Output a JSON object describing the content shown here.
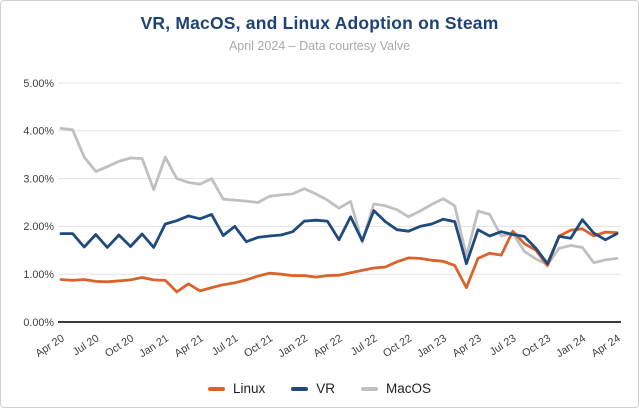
{
  "card": {
    "title": "VR, MacOS, and Linux Adoption on Steam",
    "subtitle": "April 2024 – Data courtesy Valve"
  },
  "chart_data": {
    "type": "line",
    "title": "VR, MacOS, and Linux Adoption on Steam",
    "subtitle": "April 2024 – Data courtesy Valve",
    "grid": true,
    "legend_position": "bottom",
    "ylim": [
      0,
      5
    ],
    "y_tick_labels": [
      "0.00%",
      "1.00%",
      "2.00%",
      "3.00%",
      "4.00%",
      "5.00%"
    ],
    "x_tick_labels": [
      "Apr 20",
      "Jul 20",
      "Oct 20",
      "Jan 21",
      "Apr 21",
      "Jul 21",
      "Oct 21",
      "Jan 22",
      "Apr 22",
      "Jul 22",
      "Oct 22",
      "Jan 23",
      "Apr 23",
      "Jul 23",
      "Oct 23",
      "Jan 24",
      "Apr 24"
    ],
    "x_months": [
      "Apr 20",
      "May 20",
      "Jun 20",
      "Jul 20",
      "Aug 20",
      "Sep 20",
      "Oct 20",
      "Nov 20",
      "Dec 20",
      "Jan 21",
      "Feb 21",
      "Mar 21",
      "Apr 21",
      "May 21",
      "Jun 21",
      "Jul 21",
      "Aug 21",
      "Sep 21",
      "Oct 21",
      "Nov 21",
      "Dec 21",
      "Jan 22",
      "Feb 22",
      "Mar 22",
      "Apr 22",
      "May 22",
      "Jun 22",
      "Jul 22",
      "Aug 22",
      "Sep 22",
      "Oct 22",
      "Nov 22",
      "Dec 22",
      "Jan 23",
      "Feb 23",
      "Mar 23",
      "Apr 23",
      "May 23",
      "Jun 23",
      "Jul 23",
      "Aug 23",
      "Sep 23",
      "Oct 23",
      "Nov 23",
      "Dec 23",
      "Jan 24",
      "Feb 24",
      "Mar 24",
      "Apr 24"
    ],
    "unit": "%",
    "series": [
      {
        "name": "Linux",
        "color": "#d9632a",
        "values": [
          0.89,
          0.87,
          0.89,
          0.85,
          0.84,
          0.86,
          0.88,
          0.93,
          0.88,
          0.87,
          0.63,
          0.8,
          0.65,
          0.72,
          0.78,
          0.82,
          0.88,
          0.96,
          1.02,
          1.0,
          0.97,
          0.97,
          0.94,
          0.97,
          0.98,
          1.03,
          1.08,
          1.13,
          1.15,
          1.26,
          1.34,
          1.33,
          1.29,
          1.27,
          1.18,
          0.72,
          1.33,
          1.44,
          1.4,
          1.9,
          1.64,
          1.5,
          1.18,
          1.8,
          1.92,
          1.95,
          1.8,
          1.88,
          1.87
        ]
      },
      {
        "name": "VR",
        "color": "#1f4a7d",
        "values": [
          1.85,
          1.85,
          1.57,
          1.83,
          1.56,
          1.82,
          1.58,
          1.84,
          1.56,
          2.05,
          2.12,
          2.22,
          2.16,
          2.25,
          1.81,
          2.0,
          1.68,
          1.77,
          1.8,
          1.82,
          1.89,
          2.11,
          2.13,
          2.11,
          1.72,
          2.2,
          1.7,
          2.33,
          2.1,
          1.93,
          1.9,
          2.0,
          2.05,
          2.15,
          2.1,
          1.22,
          1.93,
          1.8,
          1.89,
          1.83,
          1.79,
          1.54,
          1.22,
          1.79,
          1.75,
          2.14,
          1.86,
          1.72,
          1.85
        ]
      },
      {
        "name": "MacOS",
        "color": "#c0c0c0",
        "values": [
          4.05,
          4.02,
          3.45,
          3.15,
          3.25,
          3.36,
          3.43,
          3.42,
          2.77,
          3.45,
          3.0,
          2.92,
          2.88,
          3.0,
          2.57,
          2.55,
          2.53,
          2.5,
          2.63,
          2.66,
          2.68,
          2.79,
          2.68,
          2.55,
          2.38,
          2.52,
          1.67,
          2.47,
          2.43,
          2.35,
          2.2,
          2.32,
          2.46,
          2.58,
          2.43,
          1.38,
          2.32,
          2.25,
          1.8,
          1.86,
          1.48,
          1.32,
          1.2,
          1.54,
          1.6,
          1.56,
          1.24,
          1.3,
          1.33
        ]
      }
    ],
    "styles": {
      "gridline_color": "#e3e3e3",
      "axis_line_color": "#3b3b3b",
      "axis_label_color": "#3f3f3f",
      "title_color": "#1e4278",
      "subtitle_color": "#a9a9a9",
      "line_width": 2.8
    }
  }
}
